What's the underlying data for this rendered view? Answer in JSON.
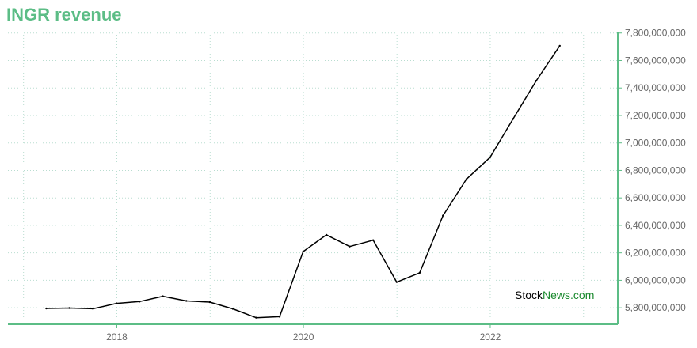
{
  "title": "INGR revenue",
  "watermark": {
    "part1": "Stock",
    "part2": "News.com"
  },
  "colors": {
    "title": "#5cbd86",
    "axis": "#5cbd86",
    "grid": "#b9ddd0",
    "line": "#000000",
    "watermark_accent": "#1a8a2e"
  },
  "chart_data": {
    "type": "line",
    "title": "INGR revenue",
    "xlabel": "",
    "ylabel": "",
    "x_ticks": [
      "2018",
      "2020",
      "2022"
    ],
    "y_ticks": [
      5800000000,
      6000000000,
      6200000000,
      6400000000,
      6600000000,
      6800000000,
      7000000000,
      7200000000,
      7400000000,
      7600000000,
      7800000000
    ],
    "y_tick_labels": [
      "5,800,000,000",
      "6,000,000,000",
      "6,200,000,000",
      "6,400,000,000",
      "6,600,000,000",
      "6,800,000,000",
      "7,000,000,000",
      "7,200,000,000",
      "7,400,000,000",
      "7,600,000,000",
      "7,800,000,000"
    ],
    "ylim": [
      5680000000,
      7810000000
    ],
    "xlim": [
      "2016-11-01",
      "2023-05-15"
    ],
    "grid": true,
    "y_axis_position": "right",
    "series": [
      {
        "points": [
          [
            "2017-03-31",
            5795000000
          ],
          [
            "2017-06-30",
            5798000000
          ],
          [
            "2017-09-30",
            5793000000
          ],
          [
            "2017-12-31",
            5832000000
          ],
          [
            "2018-03-31",
            5845000000
          ],
          [
            "2018-06-30",
            5884000000
          ],
          [
            "2018-09-30",
            5850000000
          ],
          [
            "2018-12-31",
            5841000000
          ],
          [
            "2019-03-31",
            5792000000
          ],
          [
            "2019-06-30",
            5728000000
          ],
          [
            "2019-09-30",
            5735000000
          ],
          [
            "2019-12-31",
            6209000000
          ],
          [
            "2020-03-31",
            6331000000
          ],
          [
            "2020-06-30",
            6246000000
          ],
          [
            "2020-09-30",
            6292000000
          ],
          [
            "2020-12-31",
            5987000000
          ],
          [
            "2021-03-31",
            6055000000
          ],
          [
            "2021-06-30",
            6471000000
          ],
          [
            "2021-09-30",
            6737000000
          ],
          [
            "2021-12-31",
            6894000000
          ],
          [
            "2022-03-31",
            7174000000
          ],
          [
            "2022-06-30",
            7453000000
          ],
          [
            "2022-09-30",
            7707000000
          ]
        ]
      }
    ]
  }
}
